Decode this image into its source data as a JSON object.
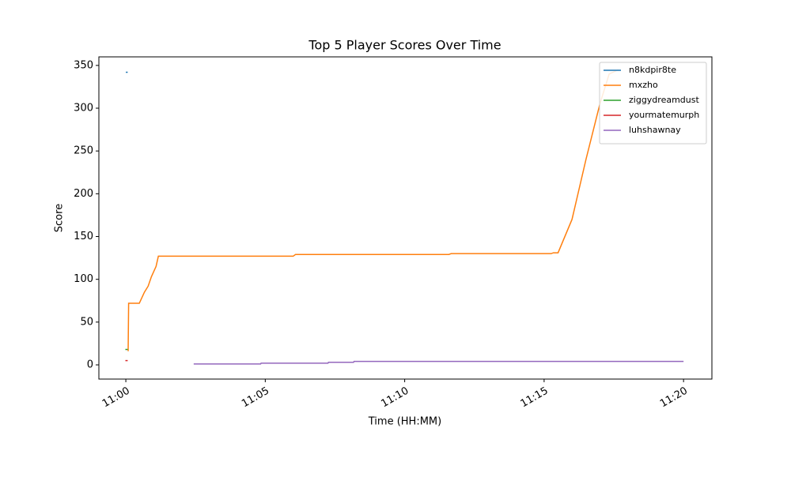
{
  "chart_data": {
    "type": "line",
    "title": "Top 5 Player Scores Over Time",
    "x_label": "Time (HH:MM)",
    "y_label": "Score",
    "xlim": [
      "10:59:02",
      "11:21:01"
    ],
    "xticks": [
      "11:00",
      "11:05",
      "11:10",
      "11:15",
      "11:20"
    ],
    "ylim": [
      -16.6,
      360
    ],
    "yticks": [
      0,
      50,
      100,
      150,
      200,
      250,
      300,
      350
    ],
    "legend": "upper right",
    "series": [
      {
        "name": "n8kdpir8te",
        "color": "#1f77b4",
        "x": [
          "11:00:00",
          "11:00:04"
        ],
        "values": [
          342,
          342
        ]
      },
      {
        "name": "mxzho",
        "color": "#ff7f0e",
        "x": [
          "11:00:05",
          "11:00:06",
          "11:00:29",
          "11:00:40",
          "11:00:48",
          "11:00:55",
          "11:01:05",
          "11:01:10",
          "11:06:00",
          "11:06:05",
          "11:11:35",
          "11:11:40",
          "11:15:15",
          "11:15:20",
          "11:15:30",
          "11:16:00",
          "11:16:30",
          "11:17:00",
          "11:17:20",
          "11:17:40"
        ],
        "values": [
          16,
          72,
          72,
          85,
          92,
          103,
          115,
          127,
          127,
          129,
          129,
          130,
          130,
          131,
          131,
          170,
          240,
          305,
          340,
          345
        ]
      },
      {
        "name": "ziggydreamdust",
        "color": "#2ca02c",
        "x": [
          "10:59:59",
          "11:00:04"
        ],
        "values": [
          18,
          18
        ]
      },
      {
        "name": "yourmatemurph",
        "color": "#d62728",
        "x": [
          "10:59:59",
          "11:00:04"
        ],
        "values": [
          5,
          5
        ]
      },
      {
        "name": "luhshawnay",
        "color": "#9467bd",
        "x": [
          "11:02:26",
          "11:04:50",
          "11:04:51",
          "11:07:15",
          "11:07:16",
          "11:08:10",
          "11:08:11",
          "11:20:00"
        ],
        "values": [
          1,
          1,
          2,
          2,
          3,
          3,
          4,
          4
        ]
      }
    ]
  }
}
